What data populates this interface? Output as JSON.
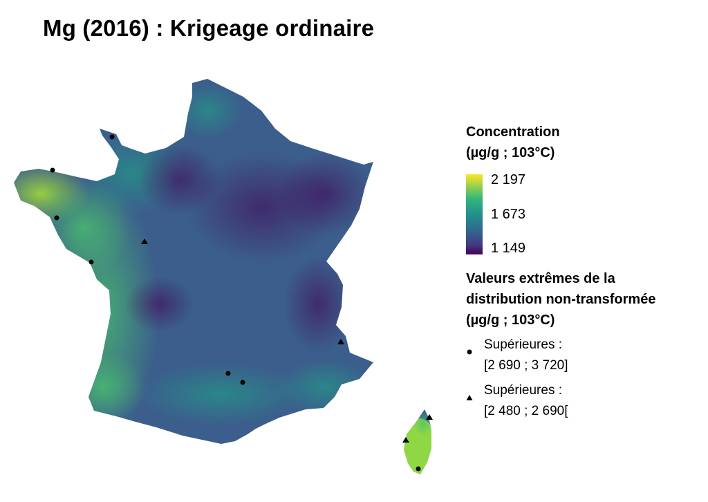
{
  "title": "Mg (2016) : Krigeage ordinaire",
  "legend": {
    "concentration_title_line1": "Concentration",
    "concentration_title_line2": "(µg/g ; 103°C)",
    "scale": {
      "max": "2 197",
      "mid": "1 673",
      "min": "1 149",
      "colors": [
        "#fde725",
        "#35b779",
        "#21918c",
        "#31688e",
        "#443983",
        "#440154"
      ]
    },
    "extremes_title_line1": "Valeurs extrêmes de la",
    "extremes_title_line2": "distribution non-transformée",
    "extremes_title_line3": "(µg/g ; 103°C)",
    "items": [
      {
        "symbol": "circle-icon",
        "line1": "Supérieures :",
        "line2": "[2 690 ; 3 720]"
      },
      {
        "symbol": "triangle-icon",
        "line1": "Supérieures :",
        "line2": "[2 480 ; 2 690["
      }
    ]
  }
}
